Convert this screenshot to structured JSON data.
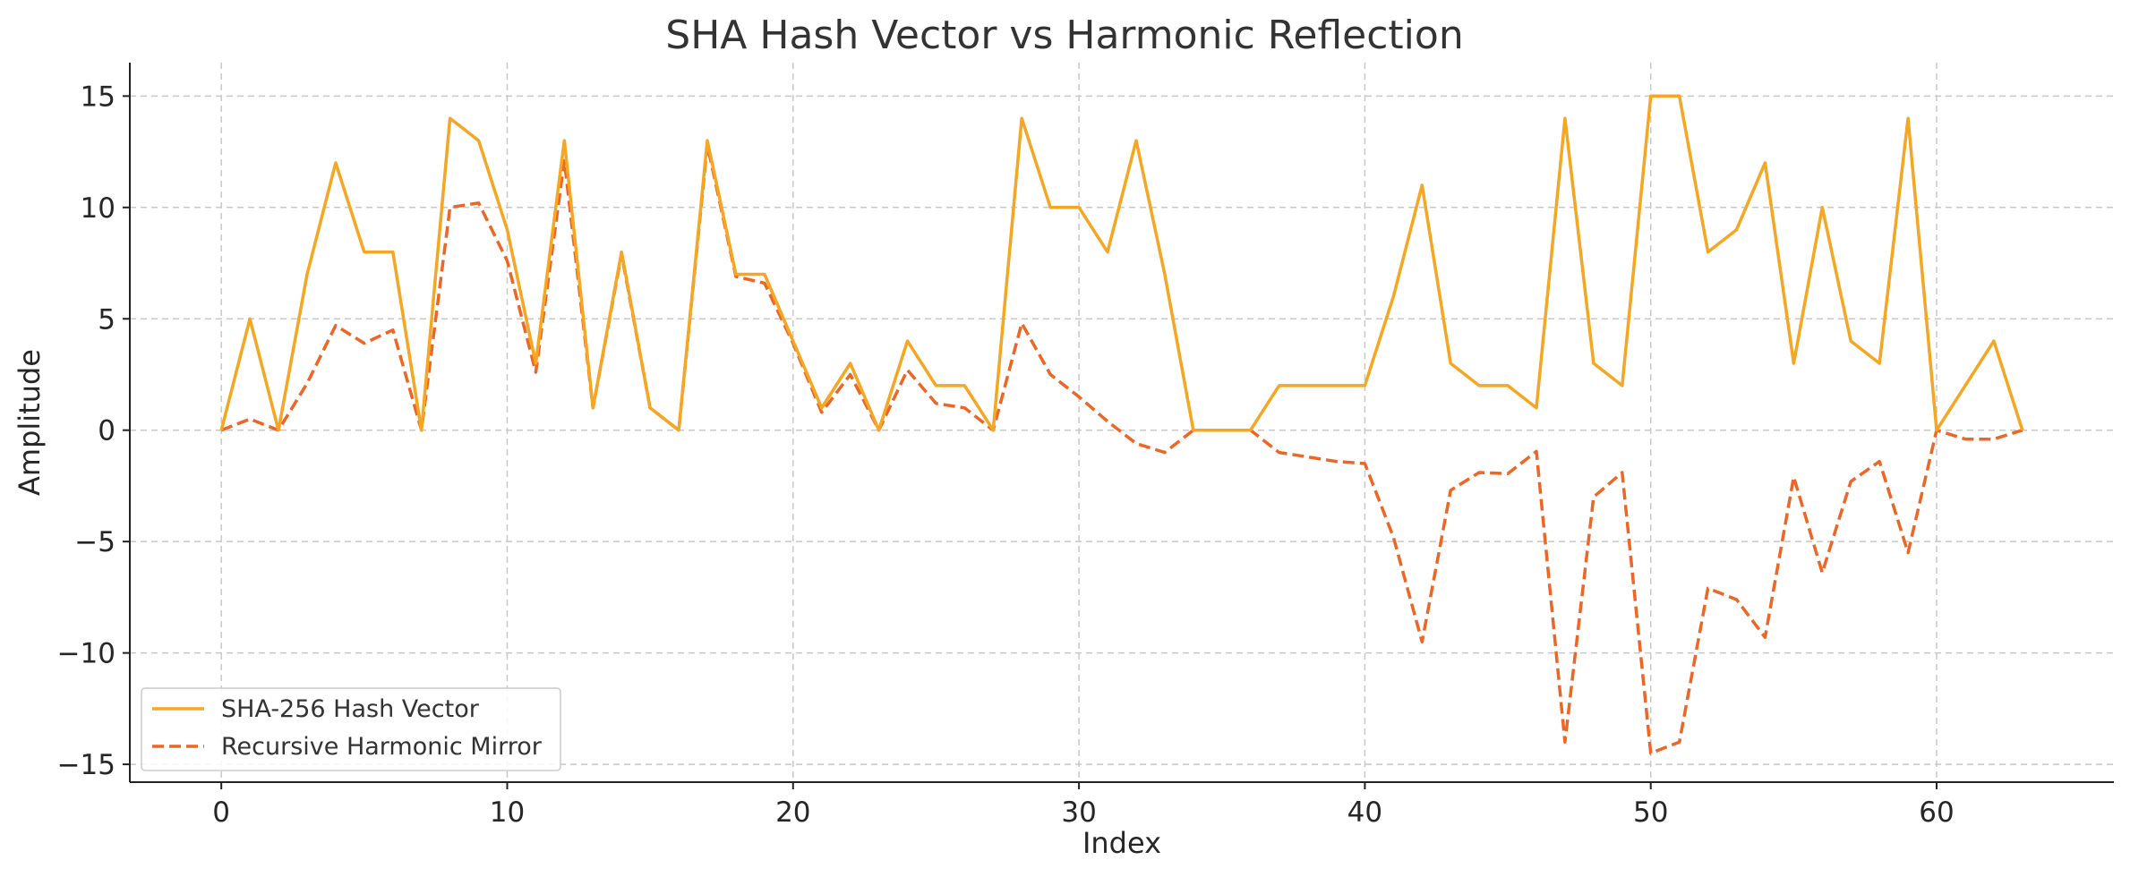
{
  "chart_data": {
    "type": "line",
    "title": "SHA Hash Vector vs Harmonic Reflection",
    "xlabel": "Index",
    "ylabel": "Amplitude",
    "xlim": [
      -3.2,
      66.2
    ],
    "ylim": [
      -15.8,
      16.5
    ],
    "xticks": [
      0,
      10,
      20,
      30,
      40,
      50,
      60
    ],
    "yticks": [
      -15,
      -10,
      -5,
      0,
      5,
      10,
      15
    ],
    "xtick_labels": [
      "0",
      "10",
      "20",
      "30",
      "40",
      "50",
      "60"
    ],
    "ytick_labels": [
      "−15",
      "−10",
      "−5",
      "0",
      "5",
      "10",
      "15"
    ],
    "grid": true,
    "legend_position": "lower-left",
    "series": [
      {
        "name": "SHA-256 Hash Vector",
        "color": "#f5a623",
        "style": "solid",
        "x": [
          0,
          1,
          2,
          3,
          4,
          5,
          6,
          7,
          8,
          9,
          10,
          11,
          12,
          13,
          14,
          15,
          16,
          17,
          18,
          19,
          20,
          21,
          22,
          23,
          24,
          25,
          26,
          27,
          28,
          29,
          30,
          31,
          32,
          33,
          34,
          35,
          36,
          37,
          38,
          39,
          40,
          41,
          42,
          43,
          44,
          45,
          46,
          47,
          48,
          49,
          50,
          51,
          52,
          53,
          54,
          55,
          56,
          57,
          58,
          59,
          60,
          61,
          62,
          63
        ],
        "values": [
          0,
          5,
          0,
          7,
          12,
          8,
          8,
          0,
          14,
          13,
          9,
          3,
          13,
          1,
          8,
          1,
          0,
          13,
          7,
          7,
          4,
          1,
          3,
          0,
          4,
          2,
          2,
          0,
          14,
          10,
          10,
          8,
          13,
          7,
          0,
          0,
          0,
          2,
          2,
          2,
          2,
          6,
          11,
          3,
          2,
          2,
          1,
          14,
          3,
          2,
          15,
          15,
          8,
          9,
          12,
          3,
          10,
          4,
          3,
          14,
          0,
          2,
          4,
          0
        ]
      },
      {
        "name": "Recursive Harmonic Mirror",
        "color": "#ee6626",
        "style": "dashed",
        "x": [
          0,
          1,
          2,
          3,
          4,
          5,
          6,
          7,
          8,
          9,
          10,
          11,
          12,
          13,
          14,
          15,
          16,
          17,
          18,
          19,
          20,
          21,
          22,
          23,
          24,
          25,
          26,
          27,
          28,
          29,
          30,
          31,
          32,
          33,
          34,
          35,
          36,
          37,
          38,
          39,
          40,
          41,
          42,
          43,
          44,
          45,
          46,
          47,
          48,
          49,
          50,
          51,
          52,
          53,
          54,
          55,
          56,
          57,
          58,
          59,
          60,
          61,
          62,
          63
        ],
        "values": [
          0,
          0.5,
          0,
          2.1,
          4.7,
          3.9,
          4.5,
          0,
          10,
          10.2,
          7.6,
          2.6,
          12.1,
          1,
          7.9,
          1,
          0,
          12.8,
          6.9,
          6.6,
          3.9,
          0.8,
          2.5,
          0,
          2.7,
          1.2,
          1,
          0,
          4.8,
          2.5,
          1.5,
          0.4,
          -0.6,
          -1,
          0,
          0,
          0,
          -1,
          -1.2,
          -1.4,
          -1.5,
          -4.8,
          -9.5,
          -2.7,
          -1.9,
          -1.95,
          -0.95,
          -14,
          -3,
          -1.9,
          -14.5,
          -14,
          -7.1,
          -7.6,
          -9.3,
          -2.1,
          -6.4,
          -2.3,
          -1.4,
          -5.5,
          0,
          -0.4,
          -0.4,
          0
        ]
      }
    ]
  }
}
